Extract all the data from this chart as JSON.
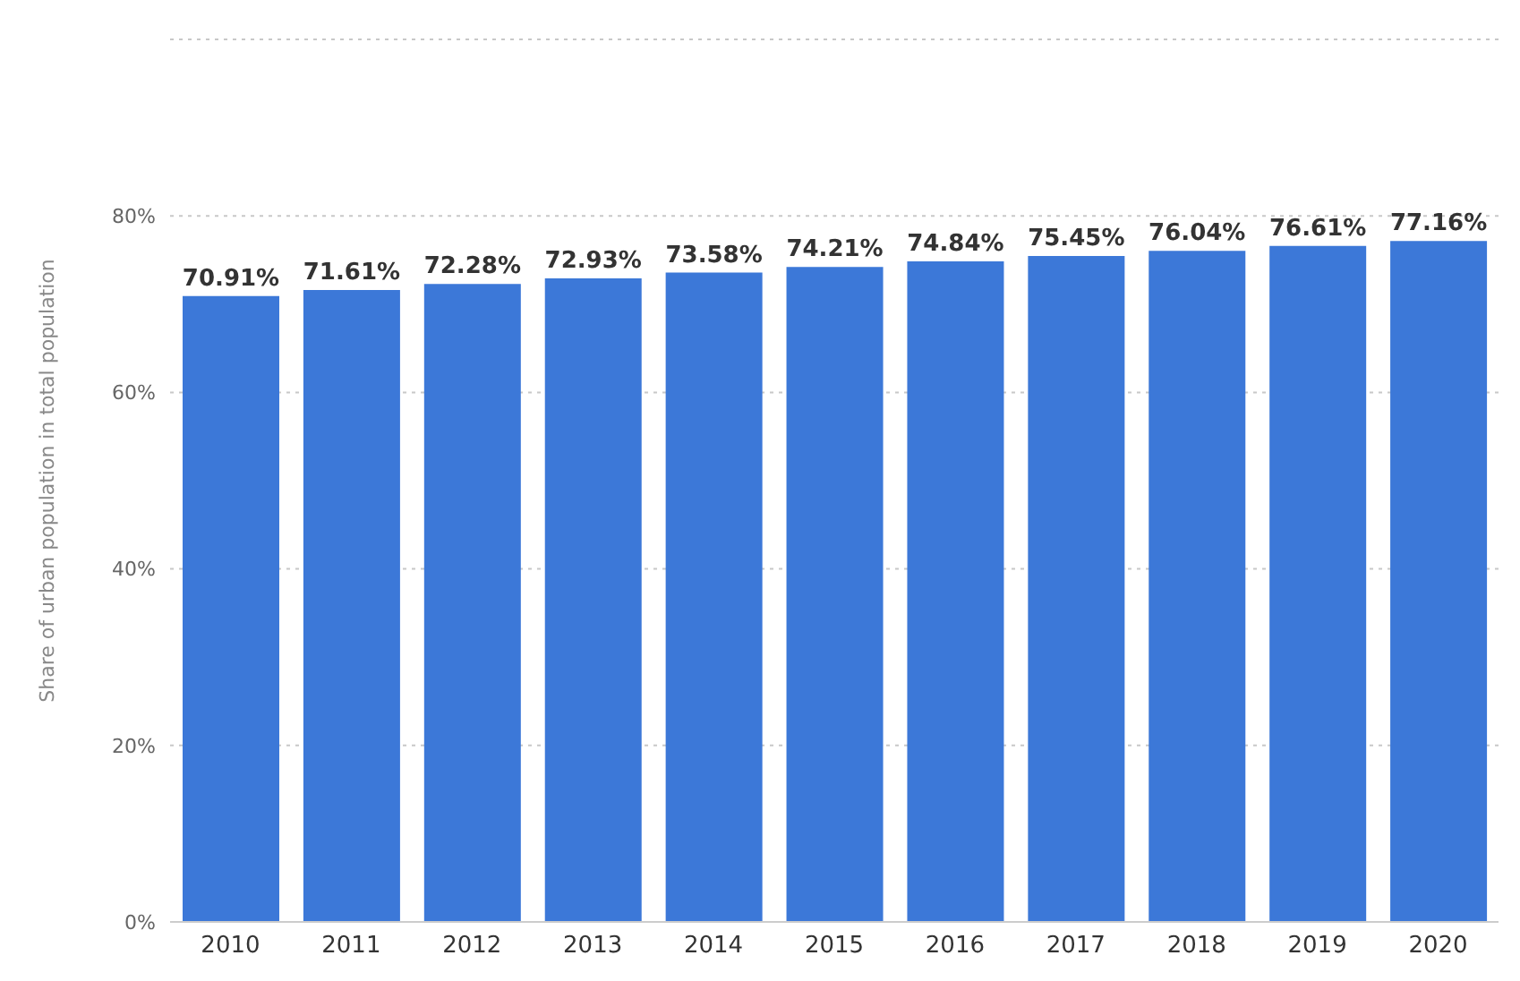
{
  "chart_data": {
    "type": "bar",
    "ylabel": "Share of urban population in total population",
    "categories": [
      "2010",
      "2011",
      "2012",
      "2013",
      "2014",
      "2015",
      "2016",
      "2017",
      "2018",
      "2019",
      "2020"
    ],
    "values": [
      70.91,
      71.61,
      72.28,
      72.93,
      73.58,
      74.21,
      74.84,
      75.45,
      76.04,
      76.61,
      77.16
    ],
    "value_labels": [
      "70.91%",
      "71.61%",
      "72.28%",
      "72.93%",
      "73.58%",
      "74.21%",
      "74.84%",
      "75.45%",
      "76.04%",
      "76.61%",
      "77.16%"
    ],
    "color": "#3c78d8",
    "ylim": [
      0,
      100
    ],
    "yticks": [
      {
        "value": 0,
        "label": "0%"
      },
      {
        "value": 20,
        "label": "20%"
      },
      {
        "value": 40,
        "label": "40%"
      },
      {
        "value": 60,
        "label": "60%"
      },
      {
        "value": 80,
        "label": "80%"
      },
      {
        "value": 100,
        "label": null
      }
    ],
    "grid": "y",
    "legend": false
  }
}
